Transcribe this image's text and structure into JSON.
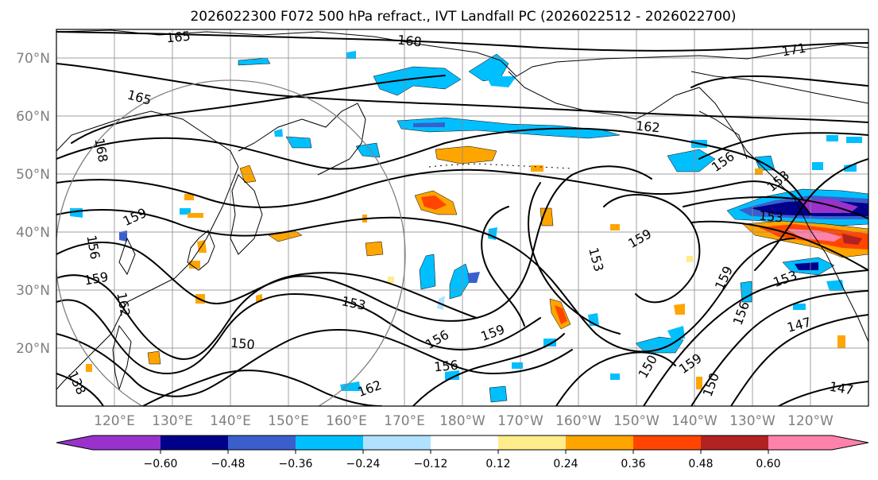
{
  "title": "2026022300 F072 500 hPa refract., IVT Landfall PC (2026022512 - 2026022700)",
  "lat_labels": [
    "70°N",
    "60°N",
    "50°N",
    "40°N",
    "30°N",
    "20°N"
  ],
  "lon_labels": [
    "120°E",
    "130°E",
    "140°E",
    "150°E",
    "160°E",
    "170°E",
    "180°W",
    "170°W",
    "160°W",
    "150°W",
    "140°W",
    "130°W",
    "120°W"
  ],
  "colorbar": {
    "ticks": [
      "−0.60",
      "−0.48",
      "−0.36",
      "−0.24",
      "−0.12",
      "0.12",
      "0.24",
      "0.36",
      "0.48",
      "0.60"
    ],
    "colors": [
      "#9932cc",
      "#00008b",
      "#3a5fcd",
      "#00bfff",
      "#b0e2ff",
      "#ffffff",
      "#ffec8b",
      "#ffa500",
      "#ff4500",
      "#b22222",
      "#ff82ab"
    ]
  },
  "contour_labels": [
    {
      "text": "165"
    },
    {
      "text": "168"
    },
    {
      "text": "171"
    },
    {
      "text": "165"
    },
    {
      "text": "168"
    },
    {
      "text": "162"
    },
    {
      "text": "156"
    },
    {
      "text": "159"
    },
    {
      "text": "156"
    },
    {
      "text": "159"
    },
    {
      "text": "162"
    },
    {
      "text": "153"
    },
    {
      "text": "150"
    },
    {
      "text": "156"
    },
    {
      "text": "159"
    },
    {
      "text": "156"
    },
    {
      "text": "162"
    },
    {
      "text": "153"
    },
    {
      "text": "159"
    },
    {
      "text": "159"
    },
    {
      "text": "150"
    },
    {
      "text": "159"
    },
    {
      "text": "156"
    },
    {
      "text": "150"
    },
    {
      "text": "147"
    },
    {
      "text": "147"
    },
    {
      "text": "153"
    },
    {
      "text": "153"
    },
    {
      "text": "153"
    },
    {
      "text": "138"
    }
  ],
  "map": {
    "extent_lon": [
      110,
      250
    ],
    "extent_lat": [
      10,
      75
    ],
    "fields": [
      "500 hPa refractivity",
      "IVT landfall PC"
    ]
  }
}
